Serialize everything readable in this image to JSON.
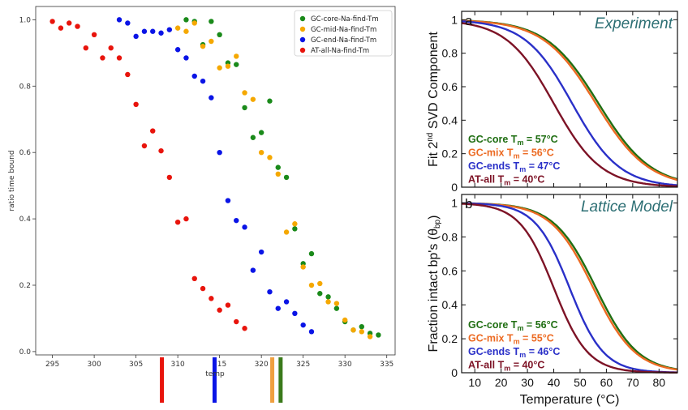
{
  "chart_data": [
    {
      "type": "scatter",
      "xlabel": "temp",
      "ylabel": "ratio time bound",
      "xlim": [
        293,
        336
      ],
      "ylim": [
        -0.01,
        1.04
      ],
      "xticks": [
        295,
        300,
        305,
        310,
        315,
        320,
        325,
        330,
        335
      ],
      "yticks": [
        0.0,
        0.2,
        0.4,
        0.6,
        0.8,
        1.0
      ],
      "legend_position": "top-right",
      "series": [
        {
          "name": "GC-core-Na-find-Tm",
          "color": "#1a8a1a",
          "x": [
            311,
            312,
            313,
            314,
            315,
            316,
            317,
            318,
            319,
            320,
            321,
            322,
            323,
            324,
            325,
            326,
            327,
            328,
            329,
            330,
            331,
            332,
            333,
            334
          ],
          "y": [
            1.0,
            0.995,
            0.925,
            0.995,
            0.955,
            0.87,
            0.865,
            0.735,
            0.645,
            0.66,
            0.755,
            0.555,
            0.525,
            0.37,
            0.265,
            0.295,
            0.175,
            0.165,
            0.13,
            0.09,
            0.065,
            0.075,
            0.055,
            0.05
          ]
        },
        {
          "name": "GC-mid-Na-find-Tm",
          "color": "#f5a800",
          "x": [
            310,
            311,
            312,
            313,
            314,
            315,
            316,
            317,
            318,
            319,
            320,
            321,
            322,
            323,
            324,
            325,
            326,
            327,
            328,
            329,
            330,
            331,
            332,
            333
          ],
          "y": [
            0.975,
            0.965,
            0.99,
            0.92,
            0.935,
            0.855,
            0.86,
            0.89,
            0.78,
            0.76,
            0.6,
            0.585,
            0.535,
            0.36,
            0.385,
            0.255,
            0.2,
            0.205,
            0.15,
            0.145,
            0.095,
            0.065,
            0.06,
            0.045
          ]
        },
        {
          "name": "GC-end-Na-find-Tm",
          "color": "#0a14e6",
          "x": [
            303,
            304,
            305,
            306,
            307,
            308,
            309,
            310,
            311,
            312,
            313,
            314,
            315,
            316,
            317,
            318,
            319,
            320,
            321,
            322,
            323,
            324,
            325,
            326
          ],
          "y": [
            1.0,
            0.99,
            0.95,
            0.965,
            0.965,
            0.96,
            0.97,
            0.91,
            0.885,
            0.83,
            0.815,
            0.765,
            0.6,
            0.455,
            0.395,
            0.375,
            0.245,
            0.3,
            0.18,
            0.13,
            0.15,
            0.115,
            0.08,
            0.06
          ]
        },
        {
          "name": "AT-all-Na-find-Tm",
          "color": "#e8140c",
          "x": [
            295,
            296,
            297,
            298,
            299,
            300,
            301,
            302,
            303,
            304,
            305,
            306,
            307,
            308,
            309,
            310,
            311,
            312,
            313,
            314,
            315,
            316,
            317,
            318
          ],
          "y": [
            0.995,
            0.975,
            0.99,
            0.98,
            0.915,
            0.955,
            0.885,
            0.915,
            0.885,
            0.835,
            0.745,
            0.62,
            0.665,
            0.605,
            0.525,
            0.39,
            0.4,
            0.22,
            0.19,
            0.16,
            0.125,
            0.14,
            0.09,
            0.07
          ]
        }
      ],
      "markers": [
        {
          "x": 308.1,
          "color": "#e8140c"
        },
        {
          "x": 314.4,
          "color": "#0a14e6"
        },
        {
          "x": 321.3,
          "color": "#f0a040"
        },
        {
          "x": 322.3,
          "color": "#3a7a1a"
        }
      ]
    },
    {
      "type": "line",
      "panel_letter": "a",
      "title": "Experiment",
      "ylabel_parts": [
        "Fit 2",
        "nd",
        " SVD Component"
      ],
      "xlim": [
        5,
        87
      ],
      "ylim": [
        0,
        1.05
      ],
      "xticks": [
        10,
        20,
        30,
        40,
        50,
        60,
        70,
        80
      ],
      "yticks": [
        0,
        0.2,
        0.4,
        0.6,
        0.8,
        1
      ],
      "series": [
        {
          "name": "GC-core",
          "tm": 57,
          "color": "#1f6e12",
          "width": 10
        },
        {
          "name": "GC-mix",
          "tm": 56,
          "color": "#ec6a22",
          "width": 10
        },
        {
          "name": "GC-ends",
          "tm": 47,
          "color": "#2a30c8",
          "width": 9
        },
        {
          "name": "AT-all",
          "tm": 40,
          "color": "#7d1326",
          "width": 9
        }
      ],
      "annotations": [
        {
          "label": "GC-core T",
          "sub": "m",
          "value": " = 57°C",
          "color": "#1f6e12"
        },
        {
          "label": "GC-mix T",
          "sub": "m",
          "value": " = 56°C",
          "color": "#ec6a22"
        },
        {
          "label": "GC-ends T",
          "sub": "m",
          "value": " = 47°C",
          "color": "#2a30c8"
        },
        {
          "label": "AT-all T",
          "sub": "m",
          "value": " = 40°C",
          "color": "#7d1326"
        }
      ]
    },
    {
      "type": "line",
      "panel_letter": "b",
      "title": "Lattice Model",
      "ylabel_parts": [
        "Fraction intact bp's (θ",
        "bp",
        ")"
      ],
      "xlabel": "Temperature (°C)",
      "xlim": [
        5,
        87
      ],
      "ylim": [
        0,
        1.05
      ],
      "xticks": [
        10,
        20,
        30,
        40,
        50,
        60,
        70,
        80
      ],
      "yticks": [
        0,
        0.2,
        0.4,
        0.6,
        0.8,
        1
      ],
      "series": [
        {
          "name": "GC-core",
          "tm": 56,
          "color": "#1f6e12",
          "width": 8
        },
        {
          "name": "GC-mix",
          "tm": 55,
          "color": "#ec6a22",
          "width": 8
        },
        {
          "name": "GC-ends",
          "tm": 46,
          "color": "#2a30c8",
          "width": 6.5
        },
        {
          "name": "AT-all",
          "tm": 40,
          "color": "#7d1326",
          "width": 6.5
        }
      ],
      "annotations": [
        {
          "label": "GC-core T",
          "sub": "m",
          "value": " = 56°C",
          "color": "#1f6e12"
        },
        {
          "label": "GC-mix T",
          "sub": "m",
          "value": " = 55°C",
          "color": "#ec6a22"
        },
        {
          "label": "GC-ends T",
          "sub": "m",
          "value": " = 46°C",
          "color": "#2a30c8"
        },
        {
          "label": "AT-all T",
          "sub": "m",
          "value": " = 40°C",
          "color": "#7d1326"
        }
      ]
    }
  ]
}
